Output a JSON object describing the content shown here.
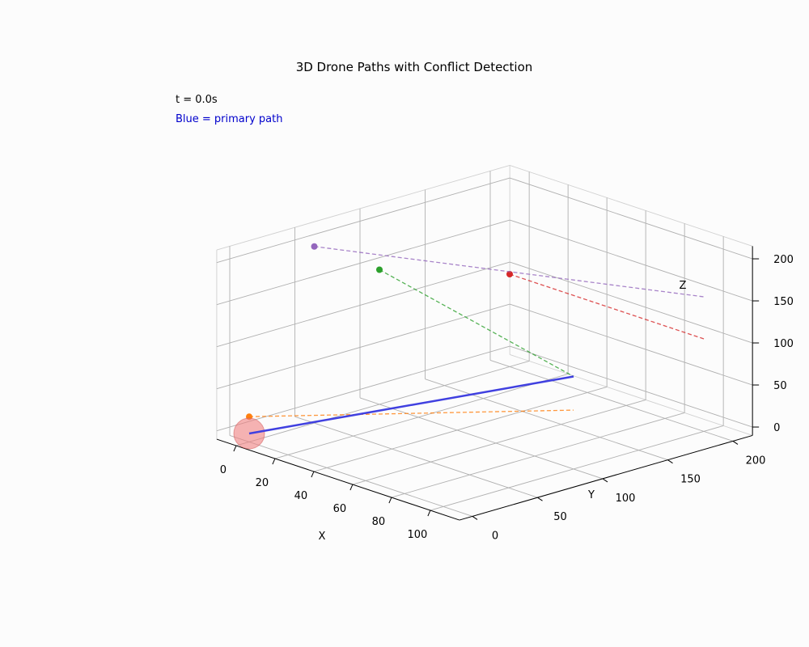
{
  "chart_data": {
    "type": "line3d",
    "title": "3D Drone Paths with Conflict Detection",
    "annotations": {
      "time": "t = 0.0s",
      "legend_note": "Blue = primary path",
      "legend_note_color": "#0000cc"
    },
    "xlabel": "X",
    "ylabel": "Y",
    "zlabel": "Z",
    "xlim": [
      -10,
      115
    ],
    "ylim": [
      -10,
      215
    ],
    "zlim": [
      -10,
      215
    ],
    "x_ticks": [
      0,
      20,
      40,
      60,
      80,
      100
    ],
    "y_ticks": [
      0,
      50,
      100,
      150,
      200
    ],
    "z_ticks": [
      0,
      50,
      100,
      150,
      200
    ],
    "grid": true,
    "primary_path": {
      "color": "#4040e0",
      "points": [
        [
          0,
          0,
          0
        ],
        [
          100,
          100,
          100
        ]
      ]
    },
    "other_paths": [
      {
        "color": "#ff7f0e",
        "start": [
          0,
          0,
          20
        ],
        "end": [
          100,
          100,
          60
        ]
      },
      {
        "color": "#2ca02c",
        "start": [
          0,
          100,
          150
        ],
        "end": [
          100,
          100,
          100
        ]
      },
      {
        "color": "#d62728",
        "start": [
          0,
          200,
          100
        ],
        "end": [
          100,
          200,
          100
        ]
      },
      {
        "color": "#9467bd",
        "start": [
          0,
          50,
          200
        ],
        "end": [
          100,
          200,
          150
        ]
      }
    ],
    "conflict_marker": {
      "center": [
        0,
        0,
        0
      ],
      "color": "#f08080"
    }
  }
}
